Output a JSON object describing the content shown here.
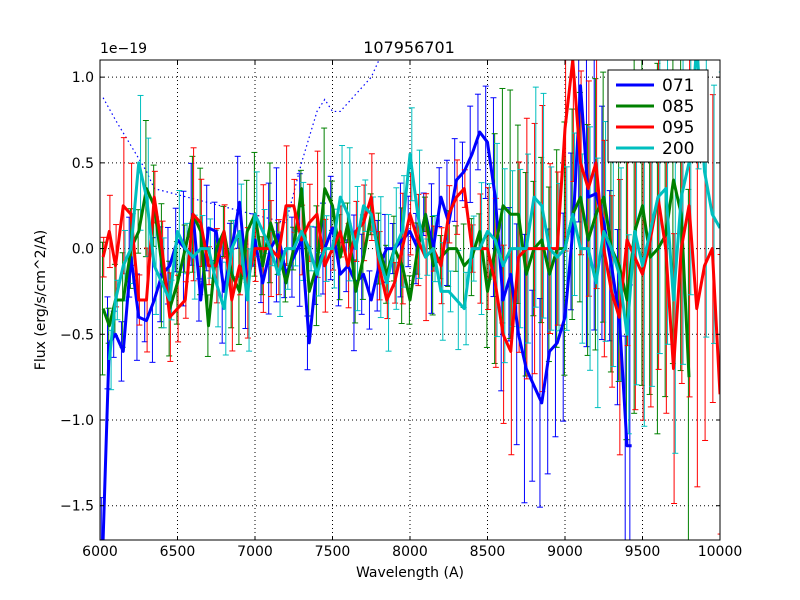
{
  "chart_data": {
    "type": "line",
    "title": "107956701",
    "xlabel": "Wavelength (A)",
    "ylabel": "Flux (erg/s/cm^2/A)",
    "y_offset_label": "1e−19",
    "xlim": [
      6000,
      10000
    ],
    "ylim": [
      -1.7,
      1.1
    ],
    "xticks": [
      6000,
      6500,
      7000,
      7500,
      8000,
      8500,
      9000,
      9500,
      10000
    ],
    "xtick_labels": [
      "6000",
      "6500",
      "7000",
      "7500",
      "8000",
      "8500",
      "9000",
      "9500",
      "10000"
    ],
    "yticks": [
      -1.5,
      -1.0,
      -0.5,
      0.0,
      0.5,
      1.0
    ],
    "ytick_labels": [
      "−1.5",
      "−1.0",
      "−0.5",
      "0.0",
      "0.5",
      "1.0"
    ],
    "grid": true,
    "legend_position": "top-right",
    "series": [
      {
        "name": "071",
        "color": "#0000ff",
        "x": [
          6020,
          6060,
          6100,
          6150,
          6200,
          6250,
          6300,
          6350,
          6400,
          6450,
          6500,
          6550,
          6600,
          6650,
          6700,
          6750,
          6800,
          6850,
          6900,
          6950,
          7000,
          7050,
          7100,
          7150,
          7200,
          7250,
          7300,
          7350,
          7400,
          7450,
          7500,
          7550,
          7600,
          7650,
          7700,
          7750,
          7800,
          7850,
          7900,
          7950,
          8000,
          8050,
          8100,
          8150,
          8200,
          8250,
          8300,
          8350,
          8400,
          8450,
          8500,
          8550,
          8600,
          8650,
          8700,
          8750,
          8800,
          8850,
          8900,
          8950,
          9000,
          9050,
          9100,
          9150,
          9200,
          9250,
          9300,
          9350,
          9400,
          9430
        ],
        "y": [
          -1.7,
          -0.55,
          -0.5,
          -0.6,
          -0.05,
          -0.4,
          -0.42,
          -0.3,
          -0.15,
          -0.1,
          0.05,
          0.0,
          0.2,
          -0.3,
          0.12,
          0.1,
          -0.25,
          0.0,
          0.27,
          -0.22,
          0.05,
          -0.2,
          0.0,
          0.08,
          -0.15,
          -0.05,
          0.05,
          -0.55,
          -0.1,
          0.0,
          0.12,
          -0.15,
          -0.1,
          -0.2,
          -0.15,
          -0.3,
          -0.1,
          0.0,
          0.0,
          0.05,
          0.1,
          0.0,
          0.2,
          0.0,
          0.3,
          0.15,
          0.4,
          0.45,
          0.55,
          0.68,
          0.62,
          0.3,
          -0.3,
          -0.15,
          -0.5,
          -0.7,
          -0.8,
          -0.9,
          -0.6,
          -0.55,
          -0.4,
          0.1,
          0.95,
          0.3,
          0.32,
          0.15,
          -0.1,
          -0.4,
          -1.15,
          -1.15
        ]
      },
      {
        "name": "085",
        "color": "#008000",
        "x": [
          6020,
          6060,
          6100,
          6150,
          6200,
          6250,
          6300,
          6350,
          6400,
          6450,
          6500,
          6550,
          6600,
          6650,
          6700,
          6750,
          6800,
          6850,
          6900,
          6950,
          7000,
          7050,
          7100,
          7150,
          7200,
          7250,
          7300,
          7350,
          7400,
          7450,
          7500,
          7550,
          7600,
          7650,
          7700,
          7750,
          7800,
          7850,
          7900,
          7950,
          8000,
          8050,
          8100,
          8150,
          8200,
          8250,
          8300,
          8350,
          8400,
          8450,
          8500,
          8550,
          8600,
          8650,
          8700,
          8750,
          8800,
          8850,
          8900,
          8950,
          9000,
          9050,
          9100,
          9150,
          9200,
          9250,
          9300,
          9350,
          9400,
          9450,
          9500,
          9550,
          9600,
          9650,
          9700,
          9750,
          9800
        ],
        "y": [
          -0.35,
          -0.45,
          -0.3,
          -0.3,
          0.0,
          0.1,
          0.35,
          0.25,
          -0.1,
          -0.35,
          -0.2,
          0.0,
          0.2,
          0.1,
          -0.45,
          0.0,
          0.1,
          -0.15,
          -0.25,
          0.1,
          0.2,
          -0.1,
          0.15,
          0.0,
          -0.2,
          0.0,
          0.35,
          -0.25,
          -0.1,
          0.35,
          0.25,
          -0.05,
          0.15,
          -0.25,
          -0.05,
          0.2,
          0.0,
          -0.15,
          0.0,
          -0.1,
          -0.3,
          0.0,
          0.2,
          -0.1,
          -0.05,
          0.0,
          0.0,
          -0.1,
          -0.05,
          0.1,
          -0.25,
          0.0,
          0.25,
          0.2,
          0.2,
          -0.15,
          0.0,
          0.05,
          -0.15,
          0.0,
          0.0,
          0.2,
          0.3,
          0.05,
          0.2,
          0.3,
          0.0,
          -0.1,
          -0.3,
          0.1,
          0.25,
          -0.05,
          0.0,
          0.08,
          0.4,
          0.2,
          -0.75
        ]
      },
      {
        "name": "095",
        "color": "#ff0000",
        "x": [
          6020,
          6060,
          6100,
          6150,
          6200,
          6250,
          6300,
          6350,
          6400,
          6450,
          6500,
          6550,
          6600,
          6650,
          6700,
          6750,
          6800,
          6850,
          6900,
          6950,
          7000,
          7050,
          7100,
          7150,
          7200,
          7250,
          7300,
          7350,
          7400,
          7450,
          7500,
          7550,
          7600,
          7650,
          7700,
          7750,
          7800,
          7850,
          7900,
          7950,
          8000,
          8050,
          8100,
          8150,
          8200,
          8250,
          8300,
          8350,
          8400,
          8450,
          8500,
          8550,
          8600,
          8650,
          8700,
          8750,
          8800,
          8850,
          8900,
          8950,
          9000,
          9050,
          9100,
          9150,
          9200,
          9250,
          9300,
          9350,
          9400,
          9450,
          9500,
          9550,
          9600,
          9650,
          9700,
          9750,
          9800,
          9850,
          9900,
          9950,
          10000
        ],
        "y": [
          -0.05,
          0.1,
          -0.1,
          0.25,
          0.2,
          -0.3,
          -0.3,
          0.3,
          0.0,
          -0.4,
          -0.35,
          -0.3,
          0.2,
          0.15,
          -0.1,
          -0.1,
          0.1,
          -0.3,
          -0.1,
          -0.2,
          0.0,
          0.0,
          0.0,
          -0.05,
          0.25,
          0.25,
          0.05,
          0.15,
          0.2,
          -0.1,
          0.0,
          0.1,
          -0.1,
          0.1,
          0.15,
          0.3,
          -0.1,
          -0.3,
          -0.2,
          0.0,
          0.2,
          0.05,
          -0.05,
          0.0,
          -0.1,
          0.2,
          0.3,
          0.35,
          0.0,
          0.0,
          0.0,
          -0.2,
          -0.5,
          -0.6,
          -0.05,
          0.0,
          0.0,
          0.0,
          0.0,
          0.0,
          0.7,
          1.1,
          0.5,
          0.35,
          0.5,
          0.0,
          -0.25,
          -0.4,
          0.05,
          -0.05,
          -0.15,
          0.05,
          0.3,
          0.0,
          -0.7,
          0.0,
          0.25,
          -0.35,
          -0.1,
          0.0,
          -0.85
        ]
      },
      {
        "name": "200",
        "color": "#00bfbf",
        "x": [
          6060,
          6100,
          6150,
          6200,
          6250,
          6300,
          6350,
          6400,
          6450,
          6500,
          6550,
          6600,
          6650,
          6700,
          6750,
          6800,
          6850,
          6900,
          6950,
          7000,
          7050,
          7100,
          7150,
          7200,
          7250,
          7300,
          7350,
          7400,
          7450,
          7500,
          7550,
          7600,
          7650,
          7700,
          7750,
          7800,
          7850,
          7900,
          7950,
          8000,
          8050,
          8100,
          8150,
          8200,
          8250,
          8300,
          8350,
          8400,
          8450,
          8500,
          8550,
          8600,
          8650,
          8700,
          8750,
          8800,
          8850,
          8900,
          8950,
          9000,
          9050,
          9100,
          9150,
          9200,
          9250,
          9300,
          9350,
          9400,
          9450,
          9500,
          9550,
          9600,
          9650,
          9700,
          9750,
          9800,
          9850,
          9900,
          9950,
          10000
        ],
        "y": [
          -0.65,
          -0.3,
          -0.1,
          0.0,
          0.5,
          0.3,
          -0.1,
          -0.2,
          -0.3,
          0.1,
          0.0,
          -0.05,
          0.0,
          0.0,
          -0.2,
          -0.35,
          0.0,
          0.1,
          -0.3,
          0.2,
          0.1,
          0.0,
          -0.15,
          0.0,
          0.0,
          0.1,
          0.0,
          -0.15,
          0.0,
          0.0,
          0.3,
          0.2,
          0.0,
          0.25,
          0.2,
          -0.05,
          -0.2,
          0.0,
          0.1,
          0.55,
          0.2,
          -0.05,
          0.0,
          -0.25,
          -0.25,
          -0.3,
          -0.35,
          0.0,
          0.0,
          0.1,
          0.05,
          -0.1,
          0.0,
          0.0,
          0.0,
          0.3,
          0.25,
          0.0,
          -0.05,
          0.0,
          0.2,
          0.0,
          0.0,
          -0.2,
          0.1,
          0.0,
          -0.15,
          -0.5,
          0.1,
          -0.1,
          0.1,
          0.3,
          0.35,
          -0.3,
          0.3,
          0.5,
          1.2,
          0.45,
          0.2,
          0.12
        ]
      }
    ],
    "reference_line": {
      "name": "dotted-blue-template",
      "color": "#0000ff",
      "x": [
        6020,
        6100,
        6200,
        6300,
        6350,
        7200,
        7300,
        7400,
        7450,
        7500,
        7550,
        7650,
        7750,
        7800
      ],
      "y": [
        0.88,
        0.75,
        0.6,
        0.45,
        0.35,
        0.15,
        0.5,
        0.8,
        0.87,
        0.8,
        0.8,
        0.9,
        1.0,
        1.1
      ]
    }
  }
}
